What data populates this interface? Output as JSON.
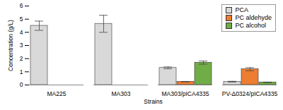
{
  "chart_data": {
    "type": "bar",
    "y_label": "Concentration (g/L)",
    "x_label": "Strains",
    "categories": [
      "MA225",
      "MA303",
      "MA303/pICA4335",
      "PV-Δ0324/pICA4335"
    ],
    "series": [
      {
        "name": "PCA",
        "color": "#d9d9d9",
        "values": [
          4.5,
          4.65,
          1.3,
          0.25
        ],
        "errors": [
          0.35,
          0.65,
          0.07,
          0.03
        ]
      },
      {
        "name": "PC aldehyde",
        "color": "#ed7d31",
        "values": [
          null,
          null,
          0.25,
          1.2
        ],
        "errors": [
          null,
          null,
          0.02,
          0.12
        ]
      },
      {
        "name": "PC alcohol",
        "color": "#70ad47",
        "values": [
          null,
          null,
          1.7,
          0.2
        ],
        "errors": [
          null,
          null,
          0.12,
          0.02
        ]
      }
    ],
    "ylim": [
      0,
      6
    ],
    "yticks": [
      0,
      1,
      2,
      3,
      4,
      5,
      6
    ],
    "grid": false,
    "legend": "top-right"
  }
}
